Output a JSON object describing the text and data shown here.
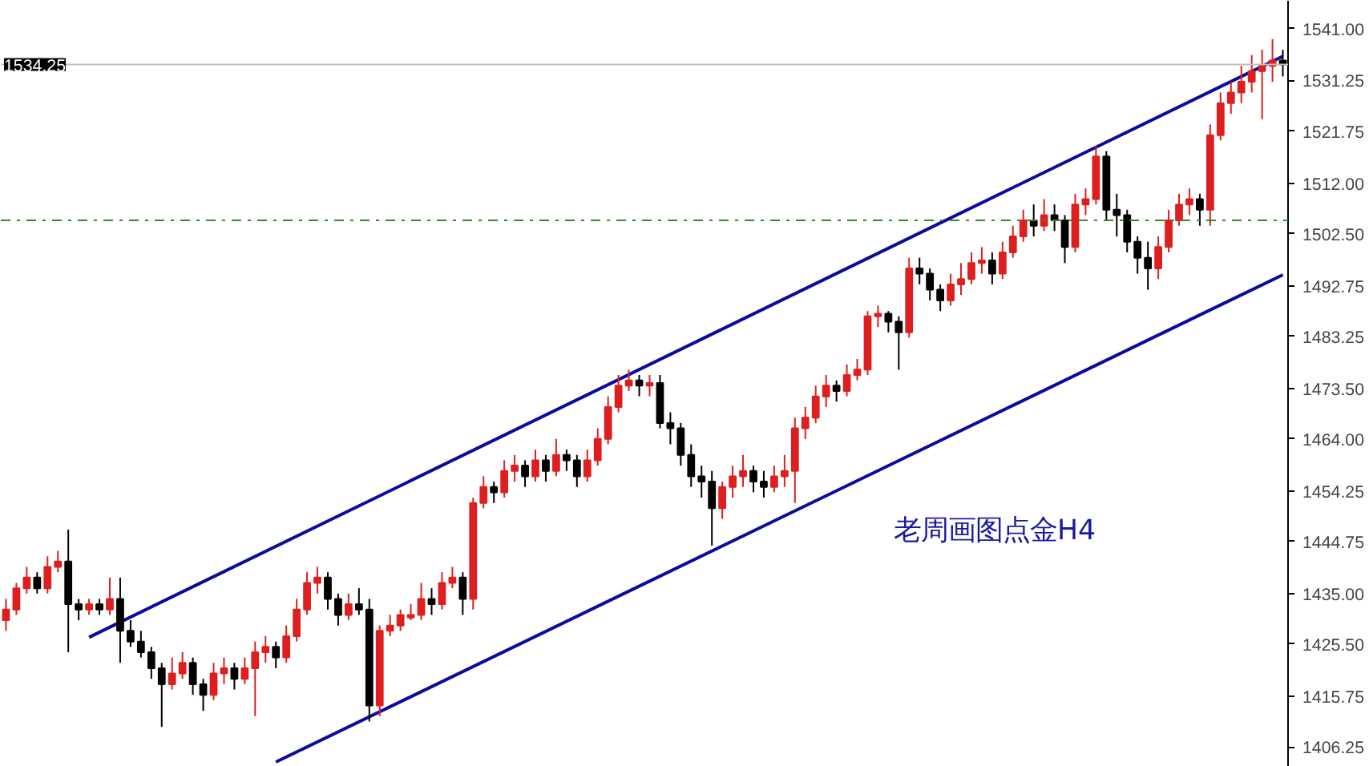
{
  "chart_data": {
    "type": "candlestick",
    "categories": [
      null,
      null,
      null,
      null,
      null,
      null,
      null,
      null,
      null,
      null,
      null,
      null,
      null,
      null,
      null,
      null,
      null,
      null,
      null,
      null,
      null,
      null,
      null,
      null,
      null,
      null,
      null,
      null,
      null,
      null,
      null,
      null,
      null,
      null,
      null,
      null,
      null,
      null,
      null,
      null,
      null,
      null,
      null,
      null,
      null,
      null,
      null,
      null,
      null,
      null,
      null,
      null,
      null,
      null,
      null,
      null,
      null,
      null,
      null,
      null,
      null,
      null,
      null,
      null,
      null,
      null,
      null,
      null,
      null,
      null,
      null,
      null,
      null,
      null,
      null,
      null,
      null,
      null,
      null,
      null,
      null,
      null,
      null,
      null,
      null,
      null,
      null,
      null,
      null,
      null,
      null,
      null,
      null,
      null,
      null,
      null,
      null,
      null,
      null,
      null,
      null,
      null,
      null,
      null,
      null,
      null,
      null,
      null,
      null,
      null,
      null,
      null,
      null,
      null,
      null,
      null,
      null,
      null,
      null,
      null,
      null,
      null,
      null,
      null
    ],
    "ohlc": [
      [
        1430,
        1434,
        1428,
        1432
      ],
      [
        1432,
        1437,
        1431,
        1436
      ],
      [
        1436,
        1440,
        1435,
        1438
      ],
      [
        1438,
        1439,
        1435,
        1436
      ],
      [
        1436,
        1442,
        1435,
        1440
      ],
      [
        1440,
        1443,
        1439,
        1441
      ],
      [
        1441,
        1447,
        1424,
        1433
      ],
      [
        1433,
        1434,
        1430,
        1432
      ],
      [
        1432,
        1434,
        1431,
        1433
      ],
      [
        1433,
        1434,
        1431,
        1432
      ],
      [
        1432,
        1438,
        1431,
        1434
      ],
      [
        1434,
        1438,
        1422,
        1428
      ],
      [
        1428,
        1430,
        1425,
        1426
      ],
      [
        1426,
        1428,
        1423,
        1424
      ],
      [
        1424,
        1425,
        1419,
        1421
      ],
      [
        1421,
        1422,
        1410,
        1418
      ],
      [
        1418,
        1423,
        1417,
        1420
      ],
      [
        1420,
        1424,
        1419,
        1422
      ],
      [
        1422,
        1423,
        1416,
        1418
      ],
      [
        1418,
        1419,
        1413,
        1416
      ],
      [
        1416,
        1422,
        1415,
        1420
      ],
      [
        1420,
        1423,
        1418,
        1421
      ],
      [
        1421,
        1422,
        1417,
        1419
      ],
      [
        1419,
        1423,
        1418,
        1421
      ],
      [
        1421,
        1426,
        1412,
        1424
      ],
      [
        1424,
        1427,
        1422,
        1425
      ],
      [
        1425,
        1426,
        1421,
        1423
      ],
      [
        1423,
        1429,
        1422,
        1427
      ],
      [
        1427,
        1434,
        1426,
        1432
      ],
      [
        1432,
        1439,
        1431,
        1437
      ],
      [
        1437,
        1440,
        1435,
        1438
      ],
      [
        1438,
        1439,
        1432,
        1434
      ],
      [
        1434,
        1435,
        1429,
        1431
      ],
      [
        1431,
        1435,
        1430,
        1433
      ],
      [
        1433,
        1436,
        1431,
        1432
      ],
      [
        1432,
        1434,
        1411,
        1414
      ],
      [
        1414,
        1429,
        1412,
        1428
      ],
      [
        1428,
        1431,
        1427,
        1429
      ],
      [
        1429,
        1432,
        1428,
        1431
      ],
      [
        1430.5,
        1433,
        1430,
        1431
      ],
      [
        1431,
        1437,
        1430,
        1434
      ],
      [
        1434,
        1436,
        1431,
        1433
      ],
      [
        1433,
        1439,
        1432,
        1437
      ],
      [
        1437,
        1440,
        1436,
        1438
      ],
      [
        1438,
        1439,
        1431,
        1434
      ],
      [
        1434,
        1453,
        1432,
        1452
      ],
      [
        1452,
        1457,
        1451,
        1455
      ],
      [
        1455,
        1456,
        1452,
        1454
      ],
      [
        1454,
        1460,
        1453,
        1458
      ],
      [
        1458,
        1461,
        1456,
        1459
      ],
      [
        1459,
        1460,
        1455,
        1457
      ],
      [
        1457,
        1462,
        1456,
        1460
      ],
      [
        1460,
        1461,
        1456,
        1458
      ],
      [
        1458,
        1464,
        1457,
        1461
      ],
      [
        1461,
        1462,
        1458,
        1460
      ],
      [
        1460,
        1461,
        1455,
        1457
      ],
      [
        1457,
        1462,
        1456,
        1460
      ],
      [
        1460,
        1466,
        1459,
        1464
      ],
      [
        1464,
        1472,
        1463,
        1470
      ],
      [
        1470,
        1476,
        1469,
        1474
      ],
      [
        1474,
        1477,
        1473,
        1475
      ],
      [
        1475,
        1476,
        1472,
        1474
      ],
      [
        1474,
        1476,
        1472,
        1474.5
      ],
      [
        1474.5,
        1476,
        1466,
        1467
      ],
      [
        1467,
        1469,
        1463,
        1466
      ],
      [
        1466,
        1467,
        1459,
        1461
      ],
      [
        1461,
        1463,
        1455,
        1457
      ],
      [
        1457,
        1459,
        1453,
        1456
      ],
      [
        1456,
        1458,
        1444,
        1451
      ],
      [
        1451,
        1456,
        1449,
        1455
      ],
      [
        1455,
        1459,
        1453,
        1457
      ],
      [
        1457,
        1461,
        1455,
        1458
      ],
      [
        1458,
        1459,
        1454,
        1456
      ],
      [
        1456,
        1458,
        1453,
        1455
      ],
      [
        1455,
        1459,
        1454,
        1457
      ],
      [
        1457,
        1461,
        1455,
        1458
      ],
      [
        1458,
        1468,
        1452,
        1466
      ],
      [
        1466,
        1470,
        1464,
        1468
      ],
      [
        1468,
        1474,
        1467,
        1472
      ],
      [
        1472,
        1476,
        1470,
        1474
      ],
      [
        1474,
        1475,
        1471,
        1473
      ],
      [
        1473,
        1478,
        1472,
        1476
      ],
      [
        1476,
        1479,
        1475,
        1477
      ],
      [
        1477,
        1488,
        1476,
        1487
      ],
      [
        1487,
        1489,
        1485,
        1487.5
      ],
      [
        1487.5,
        1488,
        1484,
        1486
      ],
      [
        1486,
        1487,
        1477,
        1484
      ],
      [
        1484,
        1498,
        1483,
        1496
      ],
      [
        1496,
        1498,
        1493,
        1495
      ],
      [
        1495,
        1496,
        1490,
        1492
      ],
      [
        1492,
        1493,
        1488,
        1490
      ],
      [
        1490,
        1495,
        1489,
        1493
      ],
      [
        1493,
        1497,
        1491,
        1494
      ],
      [
        1494,
        1499,
        1493,
        1497
      ],
      [
        1497,
        1500,
        1495,
        1497.5
      ],
      [
        1497.5,
        1499,
        1493,
        1495
      ],
      [
        1495,
        1501,
        1494,
        1499
      ],
      [
        1499,
        1504,
        1498,
        1502
      ],
      [
        1502,
        1507,
        1501,
        1505
      ],
      [
        1505,
        1508,
        1502,
        1504
      ],
      [
        1504,
        1509,
        1503,
        1506
      ],
      [
        1506,
        1508,
        1503,
        1505
      ],
      [
        1505,
        1506,
        1497,
        1500
      ],
      [
        1500,
        1510,
        1499,
        1508
      ],
      [
        1508,
        1511,
        1506,
        1509
      ],
      [
        1509,
        1519,
        1508,
        1517
      ],
      [
        1517,
        1518,
        1505,
        1507
      ],
      [
        1507,
        1510,
        1502,
        1506
      ],
      [
        1506,
        1507,
        1499,
        1501
      ],
      [
        1501,
        1502,
        1495,
        1498
      ],
      [
        1498,
        1501,
        1492,
        1496
      ],
      [
        1496,
        1502,
        1494,
        1500
      ],
      [
        1500,
        1507,
        1499,
        1505
      ],
      [
        1505,
        1510,
        1504,
        1508
      ],
      [
        1508,
        1511,
        1506,
        1509
      ],
      [
        1509,
        1510,
        1504,
        1507
      ],
      [
        1507,
        1523,
        1504,
        1521
      ],
      [
        1521,
        1529,
        1520,
        1527
      ],
      [
        1527,
        1531,
        1525,
        1529
      ],
      [
        1529,
        1534,
        1527,
        1531
      ],
      [
        1531,
        1536,
        1529,
        1533
      ],
      [
        1533,
        1537,
        1524,
        1534
      ],
      [
        1534,
        1539,
        1531,
        1535
      ],
      [
        1535,
        1537,
        1532,
        1534.25
      ]
    ],
    "colors": [
      "#dd1f1f",
      "#dd1f1f",
      "#dd1f1f",
      "#000000",
      "#dd1f1f",
      "#dd1f1f",
      "#000000",
      "#000000",
      "#dd1f1f",
      "#000000",
      "#dd1f1f",
      "#000000",
      "#000000",
      "#000000",
      "#000000",
      "#000000",
      "#dd1f1f",
      "#dd1f1f",
      "#000000",
      "#000000",
      "#dd1f1f",
      "#dd1f1f",
      "#000000",
      "#dd1f1f",
      "#dd1f1f",
      "#dd1f1f",
      "#000000",
      "#dd1f1f",
      "#dd1f1f",
      "#dd1f1f",
      "#dd1f1f",
      "#000000",
      "#000000",
      "#dd1f1f",
      "#000000",
      "#000000",
      "#dd1f1f",
      "#dd1f1f",
      "#dd1f1f",
      "#dd1f1f",
      "#dd1f1f",
      "#000000",
      "#dd1f1f",
      "#dd1f1f",
      "#000000",
      "#dd1f1f",
      "#dd1f1f",
      "#000000",
      "#dd1f1f",
      "#dd1f1f",
      "#000000",
      "#dd1f1f",
      "#000000",
      "#dd1f1f",
      "#000000",
      "#000000",
      "#dd1f1f",
      "#dd1f1f",
      "#dd1f1f",
      "#dd1f1f",
      "#dd1f1f",
      "#000000",
      "#dd1f1f",
      "#000000",
      "#000000",
      "#000000",
      "#000000",
      "#000000",
      "#000000",
      "#dd1f1f",
      "#dd1f1f",
      "#dd1f1f",
      "#000000",
      "#000000",
      "#dd1f1f",
      "#dd1f1f",
      "#dd1f1f",
      "#dd1f1f",
      "#dd1f1f",
      "#dd1f1f",
      "#000000",
      "#dd1f1f",
      "#dd1f1f",
      "#dd1f1f",
      "#dd1f1f",
      "#000000",
      "#000000",
      "#dd1f1f",
      "#000000",
      "#000000",
      "#000000",
      "#dd1f1f",
      "#dd1f1f",
      "#dd1f1f",
      "#dd1f1f",
      "#000000",
      "#dd1f1f",
      "#dd1f1f",
      "#dd1f1f",
      "#000000",
      "#dd1f1f",
      "#000000",
      "#000000",
      "#dd1f1f",
      "#dd1f1f",
      "#dd1f1f",
      "#000000",
      "#000000",
      "#000000",
      "#000000",
      "#000000",
      "#dd1f1f",
      "#dd1f1f",
      "#dd1f1f",
      "#dd1f1f",
      "#000000",
      "#dd1f1f",
      "#dd1f1f",
      "#dd1f1f",
      "#dd1f1f",
      "#dd1f1f",
      "#dd1f1f",
      "#dd1f1f",
      "#000000"
    ],
    "series": [
      {
        "type": "line",
        "values": [
          null,
          null,
          null,
          null,
          null,
          null,
          null,
          null,
          1426.8,
          null,
          null,
          null,
          null,
          null,
          null,
          null,
          null,
          null,
          null,
          null,
          null,
          null,
          null,
          null,
          null,
          null,
          null,
          null,
          null,
          null,
          null,
          null,
          null,
          null,
          null,
          null,
          null,
          null,
          null,
          null,
          null,
          null,
          null,
          null,
          null,
          null,
          null,
          null,
          null,
          null,
          null,
          null,
          null,
          null,
          null,
          null,
          null,
          null,
          null,
          null,
          null,
          null,
          null,
          null,
          null,
          null,
          null,
          null,
          null,
          null,
          null,
          null,
          null,
          null,
          null,
          null,
          null,
          null,
          null,
          null,
          null,
          null,
          null,
          null,
          null,
          null,
          null,
          null,
          null,
          null,
          null,
          null,
          null,
          null,
          null,
          null,
          null,
          null,
          null,
          null,
          null,
          null,
          null,
          null,
          null,
          null,
          null,
          null,
          null,
          null,
          null,
          null,
          null,
          null,
          null,
          null,
          null,
          null,
          null,
          null,
          null,
          null,
          null,
          1535.8
        ],
        "color": "#0a0a9c"
      },
      {
        "type": "line",
        "values": [
          null,
          null,
          null,
          null,
          null,
          null,
          null,
          null,
          null,
          null,
          null,
          null,
          null,
          null,
          null,
          null,
          null,
          null,
          null,
          null,
          null,
          null,
          null,
          null,
          null,
          null,
          1403.4,
          null,
          null,
          null,
          null,
          null,
          null,
          null,
          null,
          null,
          null,
          null,
          null,
          null,
          null,
          null,
          null,
          null,
          null,
          null,
          null,
          null,
          null,
          null,
          null,
          null,
          null,
          null,
          null,
          null,
          null,
          null,
          null,
          null,
          null,
          null,
          null,
          null,
          null,
          null,
          null,
          null,
          null,
          null,
          null,
          null,
          null,
          null,
          null,
          null,
          null,
          null,
          null,
          null,
          null,
          null,
          null,
          null,
          null,
          null,
          null,
          null,
          null,
          null,
          null,
          null,
          null,
          null,
          null,
          null,
          null,
          null,
          null,
          null,
          null,
          null,
          null,
          null,
          null,
          null,
          null,
          null,
          null,
          null,
          null,
          null,
          null,
          null,
          null,
          null,
          null,
          null,
          null,
          null,
          null,
          null,
          null,
          1494.8
        ],
        "color": "#0a0a9c"
      }
    ],
    "ylim": [
      1402.5,
      1546.2
    ],
    "yticks": [
      {
        "value": 1541,
        "label": "1541.00"
      },
      {
        "value": 1531.25,
        "label": "1531.25"
      },
      {
        "value": 1521.75,
        "label": "1521.75"
      },
      {
        "value": 1512,
        "label": "1512.00"
      },
      {
        "value": 1502.5,
        "label": "1502.50"
      },
      {
        "value": 1492.75,
        "label": "1492.75"
      },
      {
        "value": 1483.25,
        "label": "1483.25"
      },
      {
        "value": 1473.5,
        "label": "1473.50"
      },
      {
        "value": 1464,
        "label": "1464.00"
      },
      {
        "value": 1454.25,
        "label": "1454.25"
      },
      {
        "value": 1444.75,
        "label": "1444.75"
      },
      {
        "value": 1435,
        "label": "1435.00"
      },
      {
        "value": 1425.5,
        "label": "1425.50"
      },
      {
        "value": 1415.75,
        "label": "1415.75"
      },
      {
        "value": 1406.25,
        "label": "1406.25"
      }
    ],
    "ref_lines": [
      {
        "axis": "y",
        "value": 1534.25,
        "label": "1534.25",
        "color": "#c0c0c0",
        "line_style": "solid"
      },
      {
        "axis": "y",
        "value": 1505,
        "color": "#2e8b2e",
        "line_style": "dashdot"
      }
    ],
    "annotations": [
      "老周画图点金H4"
    ],
    "tick_labels": "y",
    "grid": false
  }
}
